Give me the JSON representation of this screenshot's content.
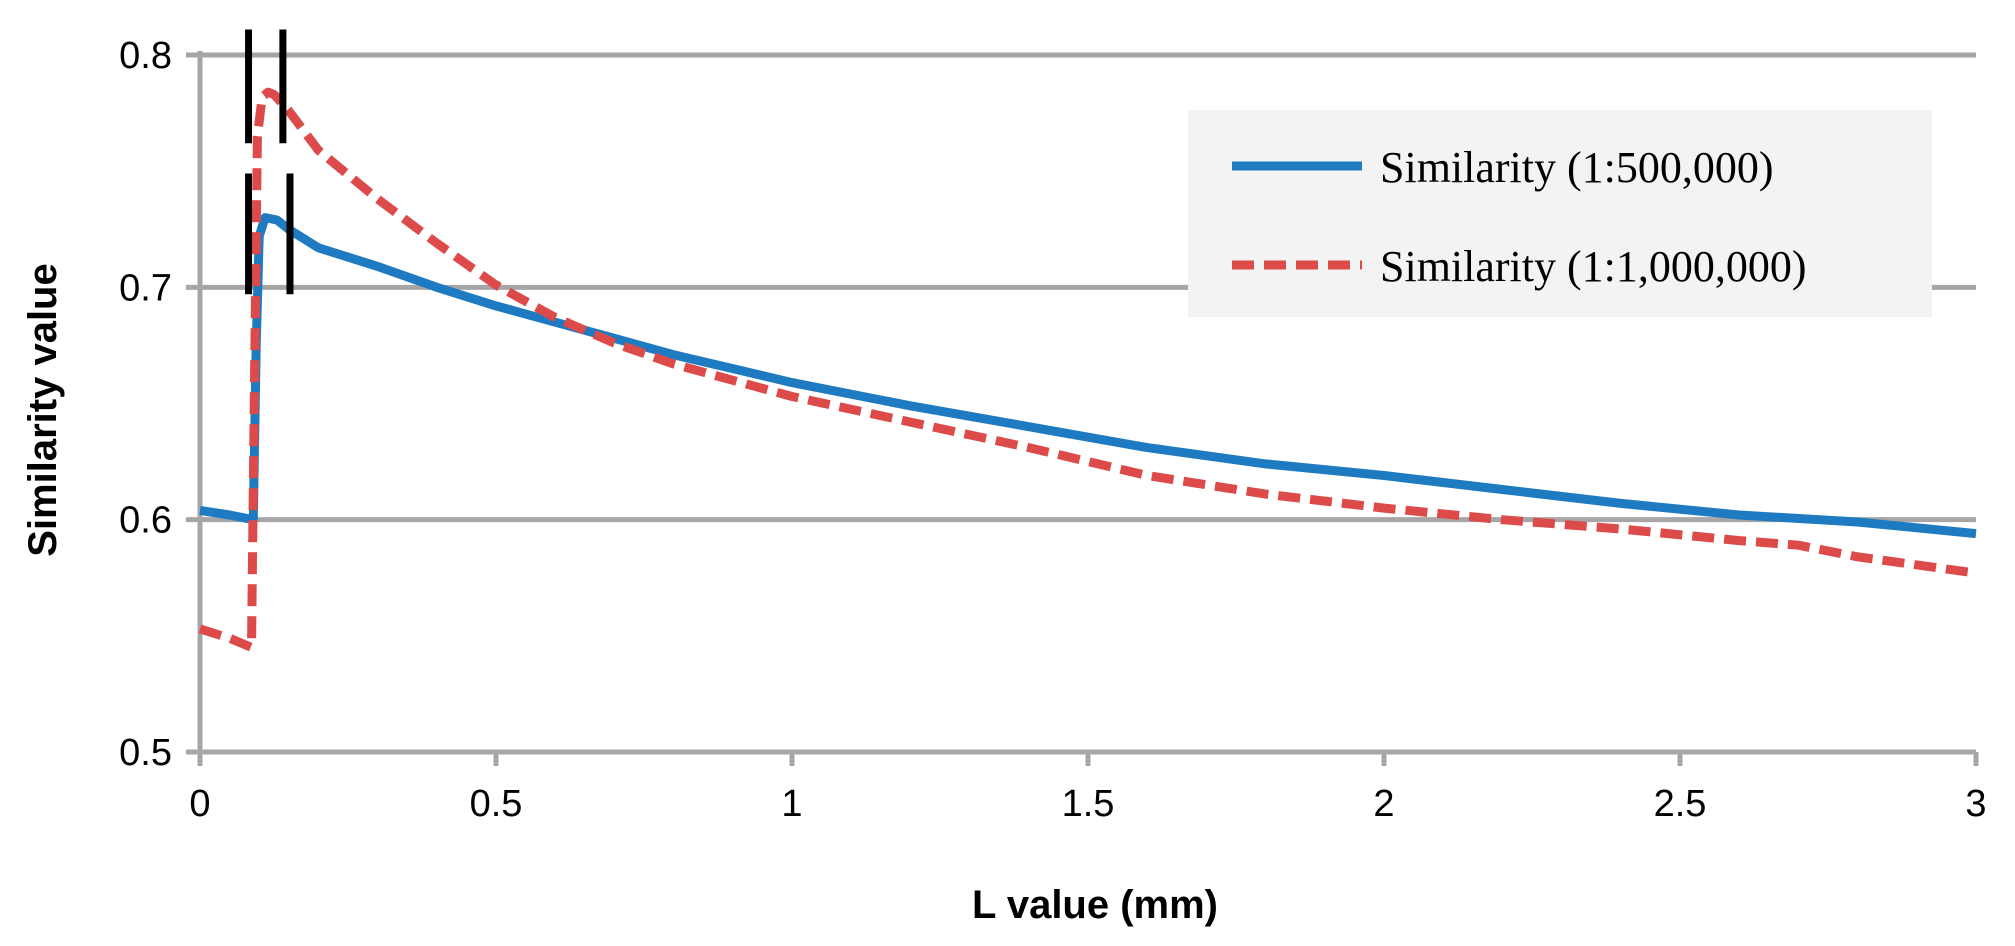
{
  "chart_data": {
    "type": "line",
    "title": "",
    "xlabel": "L value (mm)",
    "ylabel": "Similarity value",
    "xlim": [
      0,
      3
    ],
    "ylim": [
      0.5,
      0.8
    ],
    "x_ticks": [
      0,
      0.5,
      1,
      1.5,
      2,
      2.5,
      3
    ],
    "x_tick_labels": [
      "0",
      "0.5",
      "1",
      "1.5",
      "2",
      "2.5",
      "3"
    ],
    "y_ticks": [
      0.5,
      0.6,
      0.7,
      0.8
    ],
    "y_tick_labels": [
      "0.5",
      "0.6",
      "0.7",
      "0.8"
    ],
    "grid": "horizontal",
    "legend_position": "top-right",
    "series": [
      {
        "name": "Similarity (1:500,000)",
        "color": "#1f7bc1",
        "style": "solid",
        "x": [
          0,
          0.05,
          0.09,
          0.095,
          0.1,
          0.11,
          0.13,
          0.15,
          0.2,
          0.3,
          0.4,
          0.5,
          0.6,
          0.7,
          0.8,
          0.9,
          1.0,
          1.2,
          1.4,
          1.6,
          1.8,
          2.0,
          2.2,
          2.4,
          2.6,
          2.8,
          3.0
        ],
        "y": [
          0.604,
          0.602,
          0.6,
          0.675,
          0.722,
          0.73,
          0.729,
          0.725,
          0.717,
          0.709,
          0.7,
          0.692,
          0.685,
          0.678,
          0.671,
          0.665,
          0.659,
          0.649,
          0.64,
          0.631,
          0.624,
          0.619,
          0.613,
          0.607,
          0.602,
          0.599,
          0.594
        ]
      },
      {
        "name": "Similarity (1:1,000,000)",
        "color": "#dd4a4a",
        "style": "dashed",
        "x": [
          0,
          0.05,
          0.087,
          0.092,
          0.097,
          0.105,
          0.115,
          0.125,
          0.15,
          0.2,
          0.3,
          0.4,
          0.5,
          0.6,
          0.7,
          0.8,
          0.9,
          1.0,
          1.2,
          1.4,
          1.6,
          1.8,
          2.0,
          2.2,
          2.4,
          2.6,
          2.7,
          2.8,
          3.0
        ],
        "y": [
          0.553,
          0.549,
          0.545,
          0.66,
          0.765,
          0.782,
          0.784,
          0.783,
          0.776,
          0.759,
          0.738,
          0.719,
          0.701,
          0.687,
          0.676,
          0.667,
          0.66,
          0.653,
          0.642,
          0.631,
          0.619,
          0.611,
          0.605,
          0.6,
          0.596,
          0.591,
          0.589,
          0.584,
          0.577
        ]
      }
    ],
    "annotations": [
      {
        "type": "vertical-mark",
        "x": 0.082,
        "y_range": [
          0.762,
          0.811
        ]
      },
      {
        "type": "vertical-mark",
        "x": 0.14,
        "y_range": [
          0.762,
          0.811
        ]
      },
      {
        "type": "vertical-mark",
        "x": 0.082,
        "y_range": [
          0.697,
          0.749
        ]
      },
      {
        "type": "vertical-mark",
        "x": 0.152,
        "y_range": [
          0.697,
          0.749
        ]
      }
    ]
  }
}
